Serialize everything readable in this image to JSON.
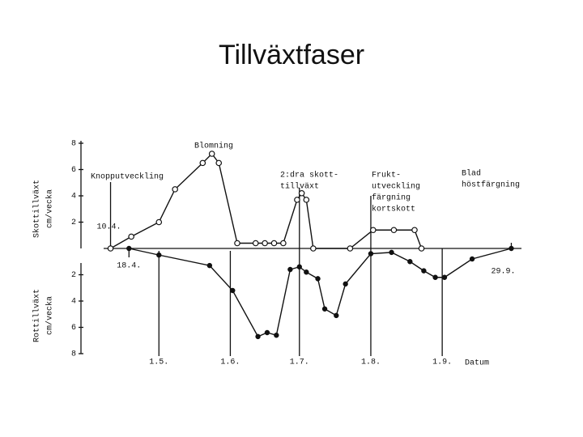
{
  "chart_data": {
    "type": "line",
    "title": "Tillväxtfaser",
    "y_label": [
      "Skottillväxt",
      "cm/vecka"
    ],
    "y2_label": [
      "Rottillväxt",
      "cm/vecka"
    ],
    "x_label": "Datum",
    "xlim": [
      97,
      277
    ],
    "xticks": [
      {
        "value": 100,
        "label": "10.4."
      },
      {
        "value": 108,
        "label": "18.4."
      },
      {
        "value": 121,
        "label": "1.5."
      },
      {
        "value": 152,
        "label": "1.6."
      },
      {
        "value": 182,
        "label": "1.7."
      },
      {
        "value": 213,
        "label": "1.8."
      },
      {
        "value": 244,
        "label": "1.9."
      },
      {
        "value": 274,
        "label": "29.9."
      }
    ],
    "ylim": [
      0,
      8
    ],
    "yticks": [
      2,
      4,
      6,
      8
    ],
    "y2lim": [
      0,
      8
    ],
    "y2ticks": [
      2,
      4,
      6,
      8
    ],
    "series": [
      {
        "marker": "open",
        "color": "#111111",
        "x": [
          100,
          109,
          121,
          128,
          140,
          144,
          147,
          155,
          163,
          167,
          171,
          175,
          181,
          183,
          185,
          188,
          204,
          214,
          223,
          232,
          235
        ],
        "values": [
          0,
          0.9,
          2,
          4.5,
          6.5,
          7.2,
          6.5,
          0.4,
          0.4,
          0.4,
          0.4,
          0.4,
          3.7,
          4.2,
          3.7,
          0,
          0,
          1.4,
          1.4,
          1.4,
          0
        ]
      },
      {
        "marker": "filled",
        "color": "#111111",
        "axis": "y2",
        "x": [
          108,
          121,
          143,
          153,
          164,
          168,
          172,
          178,
          182,
          185,
          190,
          193,
          198,
          202,
          213,
          222,
          230,
          236,
          241,
          245,
          257,
          274
        ],
        "values": [
          0,
          0.5,
          1.3,
          3.2,
          6.7,
          6.4,
          6.6,
          1.6,
          1.4,
          1.8,
          2.3,
          4.6,
          5.1,
          2.7,
          0.4,
          0.3,
          1.0,
          1.7,
          2.2,
          2.2,
          0.8,
          0
        ]
      }
    ],
    "annotations": [
      {
        "lines": [
          "Blomning"
        ]
      },
      {
        "lines": [
          "Knopputveckling"
        ]
      },
      {
        "lines": [
          "2:dra skott-",
          "tillväxt"
        ]
      },
      {
        "lines": [
          "Frukt-",
          "utveckling",
          "färgning",
          "kortskott"
        ]
      },
      {
        "lines": [
          "Blad",
          "höstfärgning"
        ]
      }
    ]
  }
}
